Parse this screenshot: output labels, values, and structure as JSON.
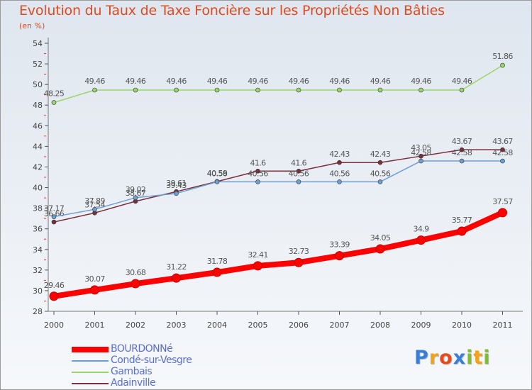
{
  "title": "Evolution du Taux de Taxe Foncière sur les Propriétés Non Bâties",
  "subtitle": "(en %)",
  "logo": {
    "text": "Proxiti",
    "letters": [
      {
        "ch": "P",
        "color": "#3a7fd5"
      },
      {
        "ch": "r",
        "color": "#f2a31c"
      },
      {
        "ch": "o",
        "color": "#e84a1e"
      },
      {
        "ch": "x",
        "color": "#3a7fd5"
      },
      {
        "ch": "i",
        "color": "#7cbf2a"
      },
      {
        "ch": "t",
        "color": "#f2a31c"
      },
      {
        "ch": "i",
        "color": "#7cbf2a"
      }
    ]
  },
  "chart_data": {
    "type": "line",
    "title": "Evolution du Taux de Taxe Foncière sur les Propriétés Non Bâties",
    "ylabel": "(en %)",
    "xlabel": "",
    "categories": [
      "2000",
      "2001",
      "2002",
      "2003",
      "2004",
      "2005",
      "2006",
      "2007",
      "2008",
      "2009",
      "2010",
      "2011"
    ],
    "ylim": [
      28,
      54
    ],
    "yticks": [
      28,
      30,
      32,
      34,
      36,
      38,
      40,
      42,
      44,
      46,
      48,
      50,
      52,
      54
    ],
    "grid": false,
    "legend_position": "bottom-left",
    "series": [
      {
        "name": "BOURDONNé",
        "color": "#ff0000",
        "values": [
          29.46,
          30.07,
          30.68,
          31.22,
          31.78,
          32.41,
          32.73,
          33.39,
          34.05,
          34.9,
          35.77,
          37.57
        ],
        "labels": [
          "29.46",
          "30.07",
          "30.68",
          "31.22",
          "31.78",
          "32.41",
          "32.73",
          "33.39",
          "34.05",
          "34.9",
          "35.77",
          "37.57"
        ]
      },
      {
        "name": "Condé-sur-Vesgre",
        "color": "#6c9fd3",
        "values": [
          37.17,
          37.89,
          39.02,
          39.43,
          40.56,
          40.56,
          40.56,
          40.56,
          40.56,
          42.58,
          42.58,
          42.58
        ],
        "labels": [
          "37.17",
          "37.89",
          "39.02",
          "39.43",
          "40.56",
          "40.56",
          "40.56",
          "40.56",
          "40.56",
          "42.58",
          "42.58",
          "42.58"
        ]
      },
      {
        "name": "Gambais",
        "color": "#99d66b",
        "values": [
          48.25,
          49.46,
          49.46,
          49.46,
          49.46,
          49.46,
          49.46,
          49.46,
          49.46,
          49.46,
          49.46,
          51.86
        ],
        "labels": [
          "48.25",
          "49.46",
          "49.46",
          "49.46",
          "49.46",
          "49.46",
          "49.46",
          "49.46",
          "49.46",
          "49.46",
          "49.46",
          "51.86"
        ]
      },
      {
        "name": "Adainville",
        "color": "#7a2f3a",
        "values": [
          36.66,
          37.54,
          38.67,
          39.61,
          40.59,
          41.6,
          41.6,
          42.43,
          42.43,
          43.05,
          43.67,
          43.67
        ],
        "labels": [
          "36.66",
          "37.54",
          "38.67",
          "39.61",
          "40.59",
          "41.6",
          "41.6",
          "42.43",
          "42.43",
          "43.05",
          "43.67",
          "43.67"
        ]
      }
    ]
  }
}
